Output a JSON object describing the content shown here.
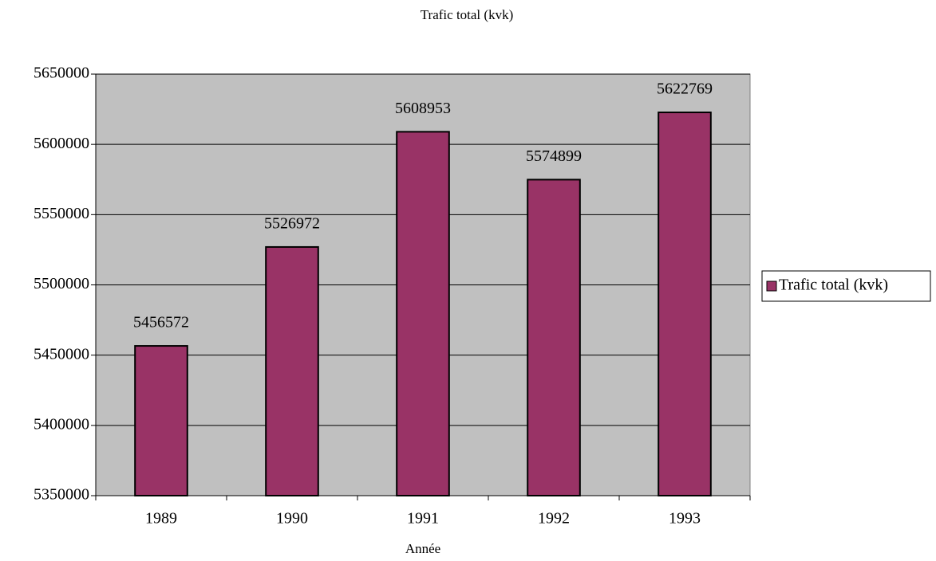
{
  "chart_data": {
    "type": "bar",
    "title": "Trafic total (kvk)",
    "x_label": "Année",
    "categories": [
      "1989",
      "1990",
      "1991",
      "1992",
      "1993"
    ],
    "series": [
      {
        "name": "Trafic total (kvk)",
        "color": "#993366",
        "values": [
          5456572,
          5526972,
          5608953,
          5574899,
          5622769
        ]
      }
    ],
    "ylim": [
      5350000,
      5650000
    ],
    "yticks": [
      5350000,
      5400000,
      5450000,
      5500000,
      5550000,
      5600000,
      5650000
    ],
    "grid": true,
    "legend": "right",
    "plot_background": "#c0c0c0"
  }
}
